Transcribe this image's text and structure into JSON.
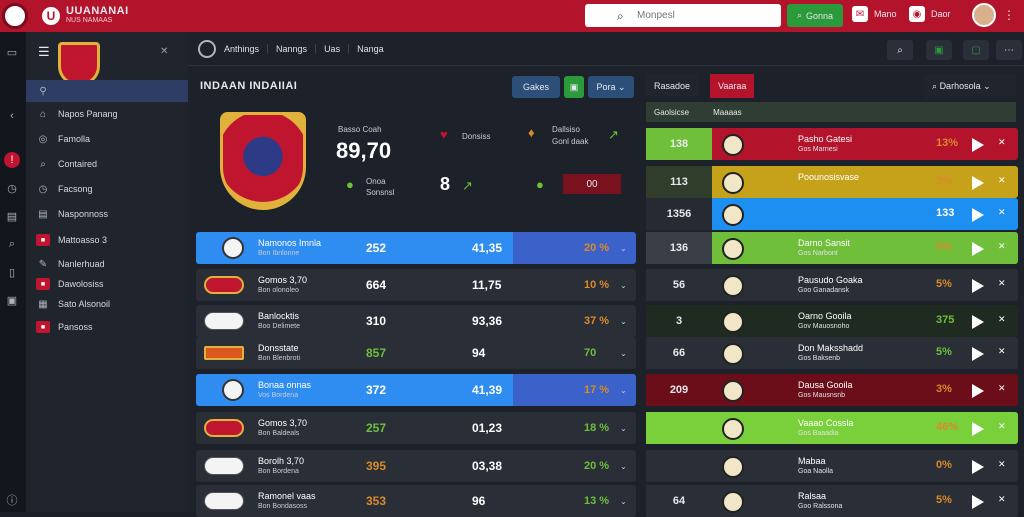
{
  "topbar": {
    "brand_name": "UUANANAI",
    "brand_sub": "NUS NAMAAS",
    "search_placeholder": "Monpesl",
    "go_label": "Gonna",
    "link1": "Mano",
    "link2": "Daor"
  },
  "sidebar": {
    "items": [
      {
        "label": "Napos Panang"
      },
      {
        "label": "Famolla"
      },
      {
        "label": "Contaired"
      },
      {
        "label": "Facsong"
      },
      {
        "label": "Nasponnoss"
      },
      {
        "label": "Mattoasso 3"
      },
      {
        "label": "Nanlerhuad"
      },
      {
        "label": "Dawolosiss"
      },
      {
        "label": "Sato Alsonoil"
      },
      {
        "label": "Pansoss"
      }
    ]
  },
  "tabs": [
    "Anthings",
    "Nanngs",
    "Uas",
    "Nanga"
  ],
  "main": {
    "title": "INDAAN INDAIIAI",
    "pill1": "Gakes",
    "pill2": "Pora",
    "hero_label": "Basso Coah",
    "hero_value": "89,70",
    "hero_like": "Donsiss",
    "hero_right_label": "Dallsiso",
    "hero_right_sub": "Gonl daak",
    "hero_bottom_label": "Onoa",
    "hero_bottom_sub": "Sonsnsl",
    "hero_score": "8",
    "score_box": "00"
  },
  "rows": [
    {
      "name": "Namonos Imnla",
      "sub": "Bon Ibnlonne",
      "c1": "252",
      "c2": "41,35",
      "c3": "20 %",
      "style": "blue"
    },
    {
      "name": "Gomos 3,70",
      "sub": "Bon olonoleo",
      "c1": "664",
      "c2": "11,75",
      "c3": "10 %",
      "style": "dark"
    },
    {
      "name": "Banlocktis",
      "sub": "Boo Delimete",
      "c1": "310",
      "c2": "93,36",
      "c3": "37 %",
      "style": "dark"
    },
    {
      "name": "Donsstate",
      "sub": "Bon Blenbroti",
      "c1": "857",
      "c2": "94",
      "c3": "70",
      "style": "dark"
    },
    {
      "name": "Bonaa onnas",
      "sub": "Vos Bordena",
      "c1": "372",
      "c2": "41,39",
      "c3": "17 %",
      "style": "blue"
    },
    {
      "name": "Gomos 3,70",
      "sub": "Bon Baldeals",
      "c1": "257",
      "c2": "01,23",
      "c3": "18 %",
      "style": "dark"
    },
    {
      "name": "Borolh 3,70",
      "sub": "Bon Bordena",
      "c1": "395",
      "c2": "03,38",
      "c3": "20 %",
      "style": "dark"
    },
    {
      "name": "Ramonel vaas",
      "sub": "Bon Bondasoss",
      "c1": "353",
      "c2": "96",
      "c3": "13 %",
      "style": "dark"
    }
  ],
  "right_panel": {
    "tab1": "Rasadoe",
    "tab2": "Vaaraa",
    "filter": "Darhosola",
    "col1": "Gaolsicse",
    "col2": "Maaaas",
    "rows": [
      {
        "num": "138",
        "name": "Pasho Gatesi",
        "sub": "Gos Marnesi",
        "pct": "13%",
        "color": "#b3142c",
        "numbg": "#6fbf3b"
      },
      {
        "num": "113",
        "name": "Poounosisvase",
        "sub": "",
        "pct": "3%",
        "color": "#c6a21b",
        "numbg": "#2f3d2a"
      },
      {
        "num": "1356",
        "name": "",
        "sub": "",
        "pct": "133",
        "color": "#1d8ff0",
        "numbg": "#252a33"
      },
      {
        "num": "136",
        "name": "Darno Sansit",
        "sub": "Gos Narbont",
        "pct": "5%",
        "color": "#6fbf3b",
        "numbg": "#3a3e47"
      },
      {
        "num": "56",
        "name": "Pausudo Goaka",
        "sub": "Goo Ganadansk",
        "pct": "5%",
        "color": "#2a2e37",
        "numbg": "#2a2e37"
      },
      {
        "num": "3",
        "name": "Oarno Gooila",
        "sub": "Gov Mauosnoho",
        "pct": "375",
        "color": "#1f2a20",
        "numbg": "#1f2a20"
      },
      {
        "num": "66",
        "name": "Don Maksshadd",
        "sub": "Gos Baksenb",
        "pct": "5%",
        "color": "#2a2e37",
        "numbg": "#2a2e37"
      },
      {
        "num": "209",
        "name": "Dausa Gooila",
        "sub": "Gos Mausnsnb",
        "pct": "3%",
        "color": "#6b0e1a",
        "numbg": "#6b0e1a"
      },
      {
        "num": "",
        "name": "Vaaao Cossla",
        "sub": "Gos Baaadia",
        "pct": "46%",
        "color": "#7ad03a",
        "numbg": "#7ad03a"
      },
      {
        "num": "",
        "name": "Mabaa",
        "sub": "Goa Naolla",
        "pct": "0%",
        "color": "#2a2e37",
        "numbg": "#2a2e37"
      },
      {
        "num": "64",
        "name": "Ralsaa",
        "sub": "Goo Ralssona",
        "pct": "5%",
        "color": "#2a2e37",
        "numbg": "#2a2e37"
      }
    ]
  },
  "colors": {
    "brand": "#b3142c",
    "accent_green": "#2a9a3a",
    "accent_blue": "#2f8cf0"
  }
}
